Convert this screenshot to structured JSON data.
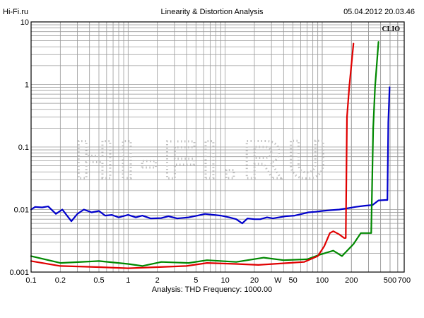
{
  "header": {
    "left": "Hi-Fi.ru",
    "center": "Linearity & Distortion Analysis",
    "right": "05.04.2012 20.03.46"
  },
  "footer": {
    "text": "Analysis: THD   Frequency: 1000.00"
  },
  "brand": "CLIO",
  "watermark": "HI-FI.RU",
  "chart_data": {
    "type": "line",
    "title": "Linearity & Distortion Analysis",
    "xlabel": "W",
    "ylabel": "",
    "x_scale": "log",
    "y_scale": "log",
    "xlim": [
      0.1,
      700
    ],
    "ylim": [
      0.001,
      10
    ],
    "grid": true,
    "x_ticks": [
      {
        "v": 0.1,
        "label": "0.1"
      },
      {
        "v": 0.2,
        "label": "0.2"
      },
      {
        "v": 0.5,
        "label": "0.5"
      },
      {
        "v": 1,
        "label": "1"
      },
      {
        "v": 2,
        "label": "2"
      },
      {
        "v": 5,
        "label": "5"
      },
      {
        "v": 10,
        "label": "10"
      },
      {
        "v": 20,
        "label": "20"
      },
      {
        "v": 50,
        "label": "50"
      },
      {
        "v": 100,
        "label": "100"
      },
      {
        "v": 200,
        "label": "200"
      },
      {
        "v": 500,
        "label": "500"
      },
      {
        "v": 700,
        "label": "700"
      }
    ],
    "y_ticks": [
      {
        "v": 10,
        "label": "10"
      },
      {
        "v": 1,
        "label": "1"
      },
      {
        "v": 0.1,
        "label": "0.1"
      },
      {
        "v": 0.01,
        "label": "0.01"
      },
      {
        "v": 0.001,
        "label": "0.001"
      }
    ],
    "series": [
      {
        "color": "#0000cc",
        "points": [
          [
            0.1,
            0.01
          ],
          [
            0.11,
            0.011
          ],
          [
            0.13,
            0.0108
          ],
          [
            0.15,
            0.0112
          ],
          [
            0.18,
            0.0085
          ],
          [
            0.21,
            0.01
          ],
          [
            0.26,
            0.0065
          ],
          [
            0.3,
            0.0085
          ],
          [
            0.35,
            0.01
          ],
          [
            0.42,
            0.009
          ],
          [
            0.5,
            0.0095
          ],
          [
            0.58,
            0.008
          ],
          [
            0.68,
            0.0082
          ],
          [
            0.8,
            0.0075
          ],
          [
            1.0,
            0.0082
          ],
          [
            1.2,
            0.0075
          ],
          [
            1.4,
            0.008
          ],
          [
            1.7,
            0.0072
          ],
          [
            2.2,
            0.0073
          ],
          [
            2.6,
            0.0078
          ],
          [
            3.2,
            0.0072
          ],
          [
            4.2,
            0.0075
          ],
          [
            5.2,
            0.008
          ],
          [
            6.2,
            0.0085
          ],
          [
            7.2,
            0.0083
          ],
          [
            9.0,
            0.008
          ],
          [
            11,
            0.0075
          ],
          [
            13,
            0.007
          ],
          [
            15,
            0.006
          ],
          [
            17,
            0.0072
          ],
          [
            20,
            0.007
          ],
          [
            23,
            0.007
          ],
          [
            27,
            0.0075
          ],
          [
            31,
            0.0072
          ],
          [
            36,
            0.0075
          ],
          [
            42,
            0.0078
          ],
          [
            52,
            0.008
          ],
          [
            62,
            0.0085
          ],
          [
            72,
            0.009
          ],
          [
            85,
            0.0092
          ],
          [
            100,
            0.0095
          ],
          [
            125,
            0.0098
          ],
          [
            150,
            0.01
          ],
          [
            185,
            0.0105
          ],
          [
            220,
            0.011
          ],
          [
            275,
            0.0115
          ],
          [
            330,
            0.0118
          ],
          [
            380,
            0.014
          ],
          [
            450,
            0.0142
          ],
          [
            470,
            0.0142
          ],
          [
            480,
            0.25
          ],
          [
            495,
            0.9
          ]
        ]
      },
      {
        "color": "#008800",
        "points": [
          [
            0.1,
            0.0018
          ],
          [
            0.2,
            0.0014
          ],
          [
            0.5,
            0.0015
          ],
          [
            1.0,
            0.00135
          ],
          [
            1.4,
            0.00125
          ],
          [
            2.2,
            0.00145
          ],
          [
            4.2,
            0.0014
          ],
          [
            6.5,
            0.00155
          ],
          [
            13,
            0.00145
          ],
          [
            25,
            0.0017
          ],
          [
            40,
            0.00155
          ],
          [
            70,
            0.0016
          ],
          [
            95,
            0.0019
          ],
          [
            130,
            0.0022
          ],
          [
            160,
            0.0018
          ],
          [
            210,
            0.0028
          ],
          [
            250,
            0.0042
          ],
          [
            320,
            0.0042
          ],
          [
            335,
            0.2
          ],
          [
            350,
            0.9
          ],
          [
            380,
            4.8
          ]
        ]
      },
      {
        "color": "#e00000",
        "points": [
          [
            0.1,
            0.0015
          ],
          [
            0.2,
            0.00125
          ],
          [
            0.5,
            0.0012
          ],
          [
            1.0,
            0.00115
          ],
          [
            2.0,
            0.0012
          ],
          [
            4.0,
            0.00125
          ],
          [
            6.5,
            0.0014
          ],
          [
            13,
            0.00135
          ],
          [
            22,
            0.0013
          ],
          [
            45,
            0.0014
          ],
          [
            65,
            0.00145
          ],
          [
            90,
            0.0018
          ],
          [
            105,
            0.0026
          ],
          [
            120,
            0.0042
          ],
          [
            130,
            0.0045
          ],
          [
            150,
            0.004
          ],
          [
            168,
            0.0035
          ],
          [
            175,
            0.0035
          ],
          [
            180,
            0.3
          ],
          [
            190,
            0.9
          ],
          [
            210,
            4.5
          ]
        ]
      }
    ]
  }
}
